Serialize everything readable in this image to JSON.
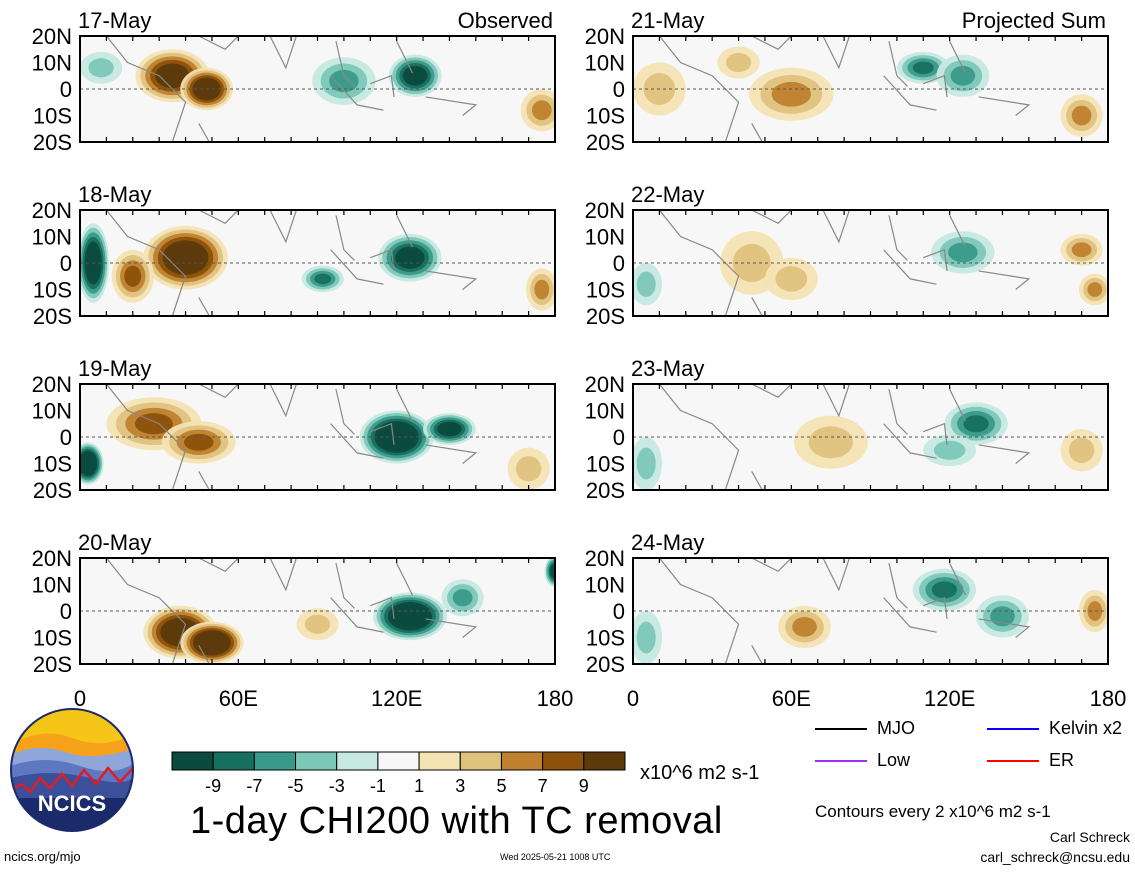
{
  "figure": {
    "title": "1-day CHI200 with TC removal",
    "units": "x10^6 m2 s-1",
    "contour_note": "Contours every 2 x10^6 m2 s-1",
    "author": "Carl Schreck",
    "email": "carl_schreck@ncsu.edu",
    "url": "ncics.org/mjo",
    "timestamp": "Wed 2025-05-21 1008 UTC",
    "logo_text": "NCICS",
    "col_labels": [
      "Observed",
      "Projected Sum"
    ]
  },
  "legend": [
    {
      "label": "MJO",
      "color": "#000000"
    },
    {
      "label": "Kelvin x2",
      "color": "#0000ff"
    },
    {
      "label": "Low",
      "color": "#9b30ff"
    },
    {
      "label": "ER",
      "color": "#ff0000"
    }
  ],
  "colorbar": {
    "tick_labels": [
      "-9",
      "-7",
      "-5",
      "-3",
      "-1",
      "1",
      "3",
      "5",
      "7",
      "9"
    ],
    "colors": [
      "#0c4a3f",
      "#17705f",
      "#3a9a89",
      "#7cc7b8",
      "#c6e9e1",
      "#f7f7f7",
      "#f4e3b3",
      "#dfc27d",
      "#bf812d",
      "#8c510a",
      "#5c3a0c"
    ]
  },
  "chart_data": {
    "type": "heatmap",
    "xlabel": "",
    "ylabel": "",
    "x_ticks": [
      "0",
      "60E",
      "120E",
      "180"
    ],
    "y_ticks": [
      "20N",
      "10N",
      "0",
      "10S",
      "20S"
    ],
    "xlim": [
      0,
      180
    ],
    "ylim": [
      -20,
      20
    ],
    "panels": [
      {
        "date": "17-May",
        "column": "Observed"
      },
      {
        "date": "18-May",
        "column": "Observed"
      },
      {
        "date": "19-May",
        "column": "Observed"
      },
      {
        "date": "20-May",
        "column": "Observed"
      },
      {
        "date": "21-May",
        "column": "Projected Sum"
      },
      {
        "date": "22-May",
        "column": "Projected Sum"
      },
      {
        "date": "23-May",
        "column": "Projected Sum"
      },
      {
        "date": "24-May",
        "column": "Projected Sum"
      }
    ]
  }
}
